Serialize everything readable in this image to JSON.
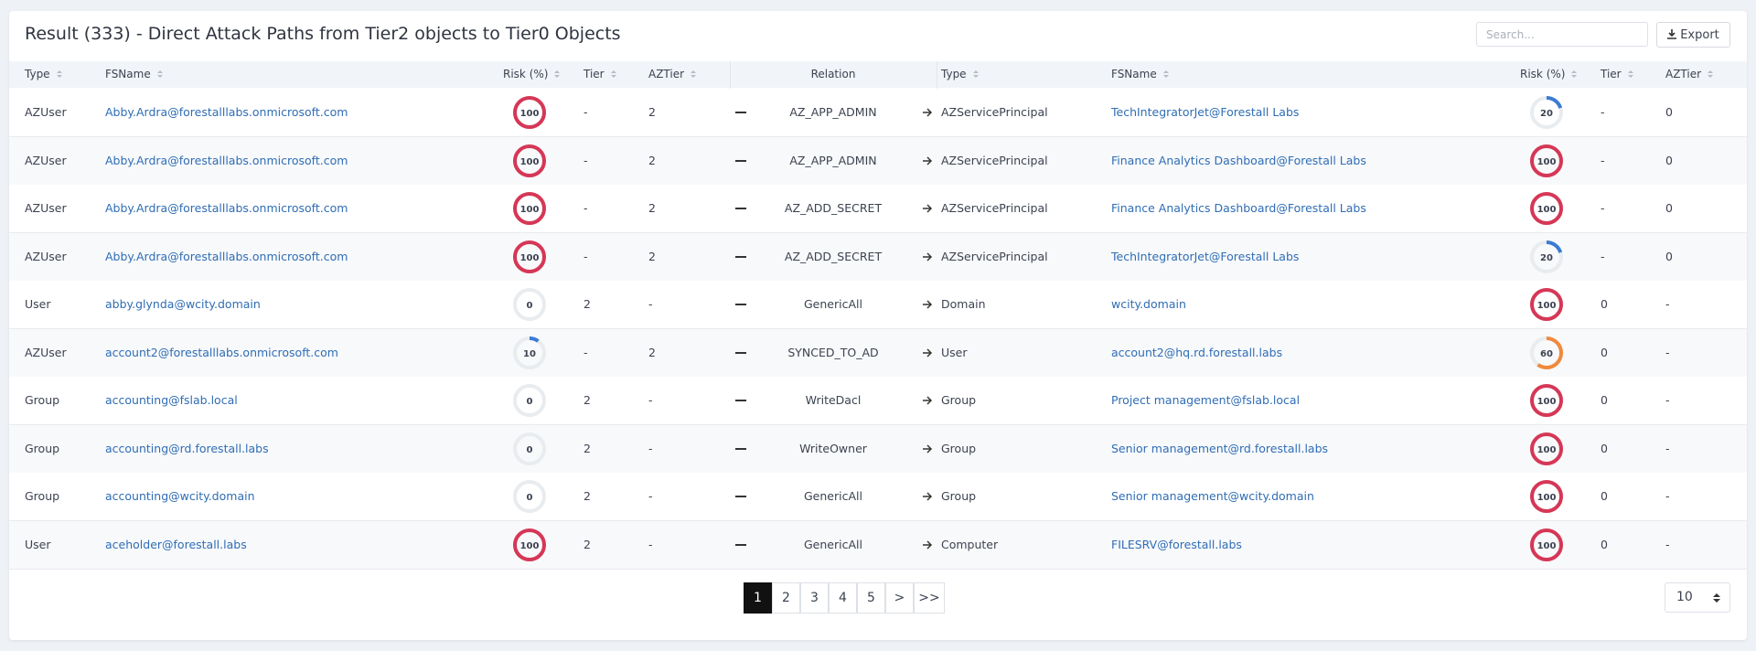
{
  "header": {
    "title": "Result (333) - Direct Attack Paths from Tier2 objects to Tier0 Objects",
    "search_placeholder": "Search...",
    "export": "Export"
  },
  "table": {
    "headers": [
      "Type",
      "FSName",
      "Risk (%)",
      "Tier",
      "AZTier",
      "Relation",
      "Type",
      "FSName",
      "Risk (%)",
      "Tier",
      "AZTier"
    ],
    "rows": [
      {
        "type": "AZUser",
        "fsname": "Abby.Ardra@forestalllabs.onmicrosoft.com",
        "risk": 100,
        "tier": "-",
        "aztier": 2,
        "relation": "AZ_APP_ADMIN",
        "target_type": "AZServicePrincipal",
        "target_fsname": "TechIntegratorJet@Forestall Labs",
        "target_risk": 20,
        "target_tier": "-",
        "target_aztier": 0
      },
      {
        "type": "AZUser",
        "fsname": "Abby.Ardra@forestalllabs.onmicrosoft.com",
        "risk": 100,
        "tier": "-",
        "aztier": 2,
        "relation": "AZ_APP_ADMIN",
        "target_type": "AZServicePrincipal",
        "target_fsname": "Finance Analytics Dashboard@Forestall Labs",
        "target_risk": 100,
        "target_tier": "-",
        "target_aztier": 0
      },
      {
        "type": "AZUser",
        "fsname": "Abby.Ardra@forestalllabs.onmicrosoft.com",
        "risk": 100,
        "tier": "-",
        "aztier": 2,
        "relation": "AZ_ADD_SECRET",
        "target_type": "AZServicePrincipal",
        "target_fsname": "Finance Analytics Dashboard@Forestall Labs",
        "target_risk": 100,
        "target_tier": "-",
        "target_aztier": 0
      },
      {
        "type": "AZUser",
        "fsname": "Abby.Ardra@forestalllabs.onmicrosoft.com",
        "risk": 100,
        "tier": "-",
        "aztier": 2,
        "relation": "AZ_ADD_SECRET",
        "target_type": "AZServicePrincipal",
        "target_fsname": "TechIntegratorJet@Forestall Labs",
        "target_risk": 20,
        "target_tier": "-",
        "target_aztier": 0
      },
      {
        "type": "User",
        "fsname": "abby.glynda@wcity.domain",
        "risk": 0,
        "tier": 2,
        "aztier": "-",
        "relation": "GenericAll",
        "target_type": "Domain",
        "target_fsname": "wcity.domain",
        "target_risk": 100,
        "target_tier": 0,
        "target_aztier": "-"
      },
      {
        "type": "AZUser",
        "fsname": "account2@forestalllabs.onmicrosoft.com",
        "risk": 10,
        "tier": "-",
        "aztier": 2,
        "relation": "SYNCED_TO_AD",
        "target_type": "User",
        "target_fsname": "account2@hq.rd.forestall.labs",
        "target_risk": 60,
        "target_tier": 0,
        "target_aztier": "-"
      },
      {
        "type": "Group",
        "fsname": "accounting@fslab.local",
        "risk": 0,
        "tier": 2,
        "aztier": "-",
        "relation": "WriteDacl",
        "target_type": "Group",
        "target_fsname": "Project management@fslab.local",
        "target_risk": 100,
        "target_tier": 0,
        "target_aztier": "-"
      },
      {
        "type": "Group",
        "fsname": "accounting@rd.forestall.labs",
        "risk": 0,
        "tier": 2,
        "aztier": "-",
        "relation": "WriteOwner",
        "target_type": "Group",
        "target_fsname": "Senior management@rd.forestall.labs",
        "target_risk": 100,
        "target_tier": 0,
        "target_aztier": "-"
      },
      {
        "type": "Group",
        "fsname": "accounting@wcity.domain",
        "risk": 0,
        "tier": 2,
        "aztier": "-",
        "relation": "GenericAll",
        "target_type": "Group",
        "target_fsname": "Senior management@wcity.domain",
        "target_risk": 100,
        "target_tier": 0,
        "target_aztier": "-"
      },
      {
        "type": "User",
        "fsname": "aceholder@forestall.labs",
        "risk": 100,
        "tier": 2,
        "aztier": "-",
        "relation": "GenericAll",
        "target_type": "Computer",
        "target_fsname": "FILESRV@forestall.labs",
        "target_risk": 100,
        "target_tier": 0,
        "target_aztier": "-"
      }
    ]
  },
  "pagination": {
    "pages": [
      1,
      2,
      3,
      4,
      5
    ],
    "next": ">",
    "last": ">>",
    "page_size": "10"
  }
}
